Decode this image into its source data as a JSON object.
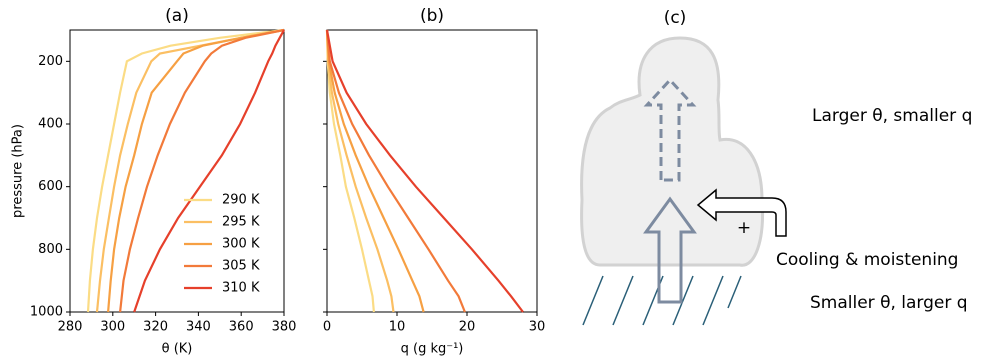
{
  "chart_data": [
    {
      "type": "line",
      "title": "(a)",
      "x_label": "θ (K)",
      "y_label": "pressure (hPa)",
      "y": [
        1000,
        900,
        800,
        700,
        600,
        500,
        400,
        300,
        200,
        175,
        150,
        125,
        100
      ],
      "xlim": [
        280,
        380
      ],
      "xticks": [
        280,
        300,
        320,
        340,
        360,
        380
      ],
      "ylim": [
        1000,
        100
      ],
      "yticks": [
        200,
        400,
        600,
        800,
        1000
      ],
      "legend": "lower right",
      "series": [
        {
          "name": "290 K",
          "color": "#fbdc85",
          "values": [
            288.4,
            289.3,
            290.7,
            292.6,
            295,
            297.8,
            300.6,
            303.4,
            306.6,
            313.6,
            327,
            350,
            380
          ]
        },
        {
          "name": "295 K",
          "color": "#fbbf63",
          "values": [
            292.6,
            294,
            295.8,
            298.2,
            300.6,
            303.4,
            307,
            311,
            318,
            322,
            341,
            360,
            380
          ]
        },
        {
          "name": "300 K",
          "color": "#f6a043",
          "values": [
            297.8,
            299,
            300.6,
            303,
            306,
            310,
            313.6,
            318.2,
            330,
            333,
            342,
            360,
            380
          ]
        },
        {
          "name": "305 K",
          "color": "#f27a3a",
          "values": [
            303.4,
            305,
            308,
            311.8,
            316,
            321,
            326.7,
            333.7,
            343,
            346,
            351,
            362,
            380
          ]
        },
        {
          "name": "310 K",
          "color": "#e6402b",
          "values": [
            310,
            315,
            322,
            330.5,
            340.7,
            351,
            359.5,
            366.5,
            372.6,
            374.5,
            376,
            378,
            380
          ]
        }
      ]
    },
    {
      "type": "line",
      "title": "(b)",
      "x_label": "q (g kg⁻¹)",
      "sharey": true,
      "y": [
        1000,
        950,
        900,
        800,
        700,
        600,
        500,
        400,
        300,
        200,
        100
      ],
      "xlim": [
        0,
        30
      ],
      "xticks": [
        0,
        10,
        20,
        30
      ],
      "series": [
        {
          "name": "290 K",
          "color": "#fbdc85",
          "values": [
            6.7,
            6.5,
            6,
            5,
            3.9,
            2.7,
            1.9,
            1,
            0.4,
            0.1,
            0
          ]
        },
        {
          "name": "295 K",
          "color": "#fbbf63",
          "values": [
            9.5,
            9.2,
            8.6,
            7.2,
            5.6,
            4.1,
            2.8,
            1.6,
            0.7,
            0.15,
            0
          ]
        },
        {
          "name": "300 K",
          "color": "#f6a043",
          "values": [
            13.8,
            13.2,
            12.2,
            10.2,
            8.1,
            6,
            4.1,
            2.4,
            1.1,
            0.25,
            0
          ]
        },
        {
          "name": "305 K",
          "color": "#f27a3a",
          "values": [
            19.7,
            18.8,
            17.3,
            14.5,
            11.6,
            8.7,
            6,
            3.6,
            1.7,
            0.4,
            0
          ]
        },
        {
          "name": "310 K",
          "color": "#e6402b",
          "values": [
            28,
            26.3,
            24.5,
            20.7,
            16.7,
            12.7,
            9,
            5.6,
            2.8,
            0.8,
            0
          ]
        }
      ]
    }
  ],
  "diagram": {
    "title": "(c)",
    "upper_label": "Larger θ, smaller q",
    "side_label": "Cooling & moistening",
    "lower_label": "Smaller θ, larger q",
    "sign": "+"
  }
}
